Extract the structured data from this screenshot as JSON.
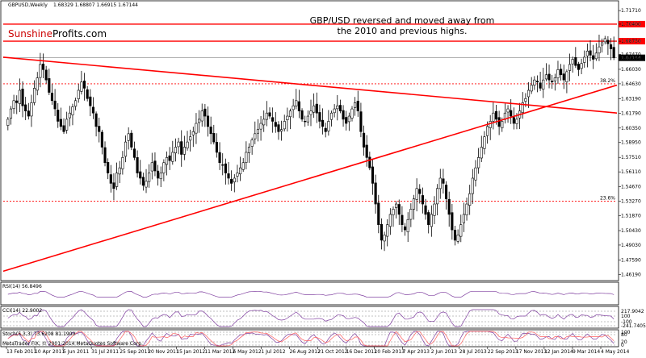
{
  "header": {
    "symbol": "GBPUSD,Weekly",
    "ohlc": "1.68329 1.68807 1.66915 1.67144"
  },
  "brand": {
    "part1": "Sunshine",
    "part2": "Profits.com",
    "color1": "#cc0000",
    "color2": "#000000"
  },
  "annotation": {
    "line1": "GBP/USD reversed and moved away from",
    "line2": "the 2010 and previous highs."
  },
  "footer": {
    "copyright": "MetaTrader FIX, © 2001-2014 MetaQuotes Software Corp."
  },
  "colors": {
    "candle_up": "#ffffff",
    "candle_down": "#000000",
    "candle_outline": "#000000",
    "trendline": "#ff0000",
    "horizontal": "#ff0000",
    "dotted": "#ff0000",
    "grid": "#cccccc",
    "indicator": "#8040a0",
    "indicator2": "#ff6060"
  },
  "chart_data": {
    "type": "candlestick",
    "title": "GBP/USD reversed and moved away from the 2010 and previous highs.",
    "ylim": [
      1.4575,
      1.725
    ],
    "y_ticks": [
      "1.71710",
      "1.70400",
      "1.68750",
      "1.67470",
      "1.67144",
      "1.66030",
      "1.64630",
      "1.63190",
      "1.61790",
      "1.60350",
      "1.58950",
      "1.57510",
      "1.56110",
      "1.54670",
      "1.53270",
      "1.51870",
      "1.50430",
      "1.49030",
      "1.47590",
      "1.46190"
    ],
    "x_ticks": [
      "13 Feb 2011",
      "10 Apr 2011",
      "5 Jun 2011",
      "31 Jul 2011",
      "25 Sep 2011",
      "20 Nov 2011",
      "15 Jan 2012",
      "11 Mar 2012",
      "6 May 2012",
      "1 Jul 2012",
      "26 Aug 2012",
      "21 Oct 2012",
      "16 Dec 2012",
      "10 Feb 2013",
      "7 Apr 2013",
      "2 Jun 2013",
      "28 Jul 2013",
      "22 Sep 2013",
      "17 Nov 2013",
      "12 Jan 2014",
      "9 Mar 2014",
      "4 May 2014"
    ],
    "horizontal_levels": [
      {
        "label": "1.70400",
        "value": 1.704,
        "style": "solid"
      },
      {
        "label": "1.68750",
        "value": 1.6875,
        "style": "solid"
      }
    ],
    "current_price": {
      "label": "1.67144",
      "value": 1.67144
    },
    "fib_levels": [
      {
        "label": "38.2%",
        "value": 1.6463
      },
      {
        "label": "23.6%",
        "value": 1.5327
      }
    ],
    "trendlines": [
      {
        "name": "declining",
        "start": [
          "13 Feb 2011",
          1.672
        ],
        "end": [
          "latest",
          1.618
        ]
      },
      {
        "name": "rising",
        "start": [
          "13 Feb 2011",
          1.465
        ],
        "end": [
          "latest",
          1.645
        ]
      }
    ],
    "closes": [
      1.612,
      1.622,
      1.63,
      1.628,
      1.64,
      1.625,
      1.62,
      1.615,
      1.628,
      1.642,
      1.652,
      1.665,
      1.66,
      1.65,
      1.638,
      1.63,
      1.622,
      1.61,
      1.605,
      1.6,
      1.612,
      1.618,
      1.624,
      1.63,
      1.64,
      1.648,
      1.642,
      1.632,
      1.625,
      1.618,
      1.605,
      1.6,
      1.585,
      1.57,
      1.56,
      1.55,
      1.545,
      1.56,
      1.565,
      1.575,
      1.59,
      1.598,
      1.585,
      1.575,
      1.56,
      1.555,
      1.548,
      1.552,
      1.56,
      1.57,
      1.562,
      1.555,
      1.56,
      1.57,
      1.575,
      1.572,
      1.58,
      1.585,
      1.59,
      1.578,
      1.585,
      1.59,
      1.595,
      1.6,
      1.608,
      1.612,
      1.62,
      1.615,
      1.605,
      1.598,
      1.59,
      1.58,
      1.57,
      1.568,
      1.56,
      1.555,
      1.55,
      1.555,
      1.56,
      1.565,
      1.57,
      1.58,
      1.585,
      1.592,
      1.598,
      1.602,
      1.608,
      1.612,
      1.618,
      1.615,
      1.61,
      1.605,
      1.6,
      1.602,
      1.61,
      1.615,
      1.62,
      1.625,
      1.63,
      1.62,
      1.612,
      1.61,
      1.615,
      1.62,
      1.625,
      1.618,
      1.61,
      1.605,
      1.6,
      1.61,
      1.618,
      1.622,
      1.625,
      1.62,
      1.612,
      1.608,
      1.615,
      1.622,
      1.628,
      1.62,
      1.6,
      1.585,
      1.575,
      1.565,
      1.55,
      1.53,
      1.51,
      1.495,
      1.5,
      1.51,
      1.52,
      1.525,
      1.53,
      1.52,
      1.51,
      1.505,
      1.515,
      1.525,
      1.535,
      1.545,
      1.54,
      1.53,
      1.52,
      1.51,
      1.52,
      1.53,
      1.545,
      1.555,
      1.55,
      1.535,
      1.52,
      1.505,
      1.495,
      1.5,
      1.51,
      1.52,
      1.53,
      1.54,
      1.555,
      1.565,
      1.575,
      1.585,
      1.595,
      1.605,
      1.61,
      1.618,
      1.612,
      1.605,
      1.61,
      1.618,
      1.622,
      1.615,
      1.608,
      1.612,
      1.62,
      1.628,
      1.632,
      1.64,
      1.645,
      1.65,
      1.648,
      1.642,
      1.65,
      1.655,
      1.65,
      1.648,
      1.652,
      1.66,
      1.655,
      1.65,
      1.658,
      1.665,
      1.67,
      1.664,
      1.66,
      1.666,
      1.672,
      1.678,
      1.674,
      1.67,
      1.676,
      1.682,
      1.686,
      1.69,
      1.685,
      1.68,
      1.6714
    ]
  },
  "indicators": {
    "rsi": {
      "label": "RSI(14) 56.8496"
    },
    "cci": {
      "label": "CCI(14) 22.9002",
      "levels": [
        "217.9042",
        "100",
        "-100",
        "-241.7405"
      ]
    },
    "stoch": {
      "label": "Stoch(5,3,3) 73.6208 81.1900",
      "levels": [
        "100",
        "80",
        "20",
        "0"
      ]
    }
  }
}
